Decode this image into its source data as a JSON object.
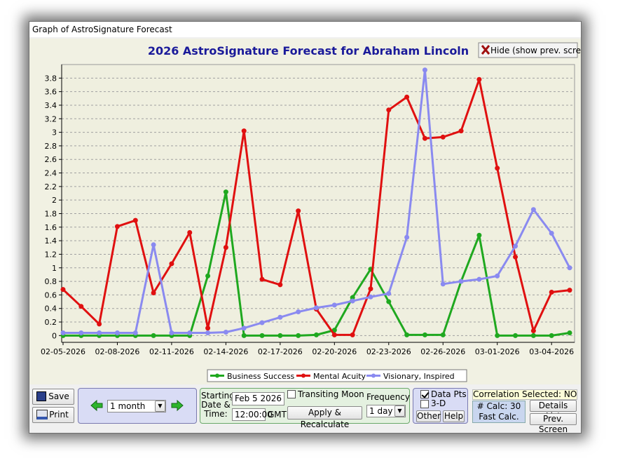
{
  "window": {
    "title": "Graph of AstroSignature Forecast"
  },
  "chart_data": {
    "type": "line",
    "title": "2026 AstroSignature Forecast for Abraham Lincoln",
    "categories": [
      "02-05-2026",
      null,
      null,
      "02-08-2026",
      null,
      null,
      "02-11-2026",
      null,
      null,
      "02-14-2026",
      null,
      null,
      "02-17-2026",
      null,
      null,
      "02-20-2026",
      null,
      null,
      "02-23-2026",
      null,
      null,
      "02-26-2026",
      null,
      null,
      "03-01-2026",
      null,
      null,
      "03-04-2026",
      null
    ],
    "series": [
      {
        "name": "Business Success",
        "color": "#1fa81f",
        "values": [
          0,
          0,
          0,
          0,
          0,
          0,
          0,
          0,
          0.88,
          2.12,
          0,
          0,
          0,
          0,
          0.01,
          0.08,
          0.56,
          0.98,
          0.5,
          0.01,
          0.01,
          0.01,
          0.8,
          1.48,
          0,
          0,
          0,
          0,
          0.04
        ]
      },
      {
        "name": "Mental Acuity",
        "color": "#e01010",
        "values": [
          0.68,
          0.43,
          0.17,
          1.61,
          1.7,
          0.63,
          1.06,
          1.52,
          0.11,
          1.3,
          3.02,
          0.83,
          0.75,
          1.84,
          0.39,
          0.01,
          0.01,
          0.69,
          3.33,
          3.52,
          2.91,
          2.93,
          3.02,
          3.78,
          2.47,
          1.16,
          0.07,
          0.64,
          0.67
        ]
      },
      {
        "name": "Visionary, Inspired",
        "color": "#8a8af0",
        "values": [
          0.04,
          0.04,
          0.04,
          0.04,
          0.04,
          1.34,
          0.04,
          0.04,
          0.04,
          0.05,
          0.11,
          0.19,
          0.27,
          0.35,
          0.41,
          0.45,
          0.51,
          0.57,
          0.62,
          1.45,
          3.92,
          0.76,
          0.8,
          0.83,
          0.88,
          1.32,
          1.86,
          1.51,
          1
        ]
      }
    ],
    "ylim": [
      -0.1,
      4
    ],
    "yticks": [
      0,
      0.2,
      0.4,
      0.6,
      0.8,
      1,
      1.2,
      1.4,
      1.6,
      1.8,
      2,
      2.2,
      2.4,
      2.6,
      2.8,
      3,
      3.2,
      3.4,
      3.6,
      3.8
    ],
    "grid": true
  },
  "buttons": {
    "hide": "Hide (show prev. screen)",
    "save": "Save",
    "print": "Print",
    "apply": "Apply & Recalculate",
    "other": "Other",
    "help": "Help",
    "details": "Details List",
    "prev": "Prev. Screen"
  },
  "controls": {
    "period": "1 month",
    "start": {
      "label_lines": [
        "Starting",
        "Date &",
        "Time:"
      ],
      "date": "Feb 5 2026",
      "time": "12:00:00",
      "tz": "GMT"
    },
    "transiting_moon": {
      "label": "Transiting Moon",
      "checked": false
    },
    "frequency": {
      "label": "Frequency",
      "value": "1 day"
    },
    "data_pts": {
      "label": "Data Pts",
      "checked": true
    },
    "three_d": {
      "label": "3-D",
      "checked": false
    },
    "correlation": "Correlation Selected: NO",
    "calc": {
      "count": "# Calc: 30",
      "mode": "Fast Calc."
    }
  }
}
